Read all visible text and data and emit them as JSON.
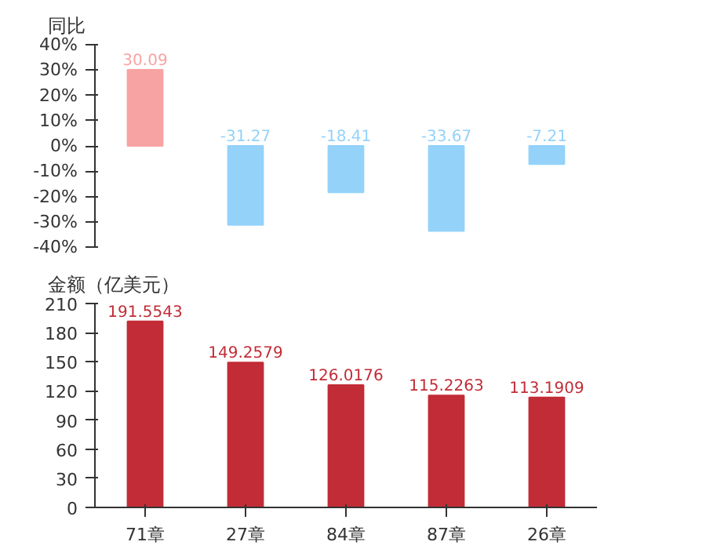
{
  "chart_data": [
    {
      "type": "bar",
      "ylabel": "同比",
      "categories": [
        "71章",
        "27章",
        "84章",
        "87章",
        "26章"
      ],
      "values": [
        30.09,
        -31.27,
        -18.41,
        -33.67,
        -7.21
      ],
      "colors": [
        "#f8a3a3",
        "#94d2fa",
        "#94d2fa",
        "#94d2fa",
        "#94d2fa"
      ],
      "ylim": [
        -40,
        40
      ],
      "yticks": [
        {
          "value": -40,
          "label": "-40%"
        },
        {
          "value": -30,
          "label": "-30%"
        },
        {
          "value": -20,
          "label": "-20%"
        },
        {
          "value": -10,
          "label": "-10%"
        },
        {
          "value": 0,
          "label": "0%"
        },
        {
          "value": 10,
          "label": "10%"
        },
        {
          "value": 20,
          "label": "20%"
        },
        {
          "value": 30,
          "label": "30%"
        },
        {
          "value": 40,
          "label": "40%"
        }
      ],
      "data_labels": true,
      "tick_labels": "y",
      "grid": false
    },
    {
      "type": "bar",
      "ylabel": "金额（亿美元）",
      "categories": [
        "71章",
        "27章",
        "84章",
        "87章",
        "26章"
      ],
      "values": [
        191.5543,
        149.2579,
        126.0176,
        115.2263,
        113.1909
      ],
      "color": "#c22c36",
      "ylim": [
        0,
        210
      ],
      "yticks": [
        0,
        30,
        60,
        90,
        120,
        150,
        180,
        210
      ],
      "data_labels": true,
      "grid": false
    }
  ]
}
